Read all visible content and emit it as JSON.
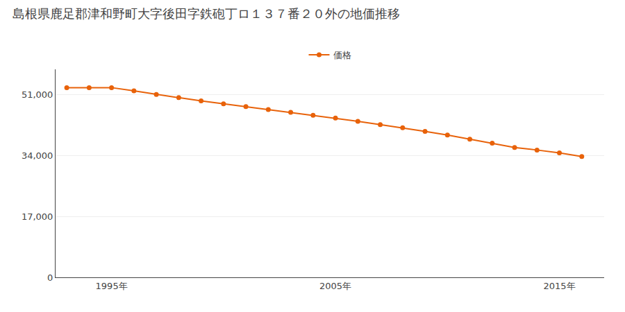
{
  "chart_data": {
    "type": "line",
    "title": "島根県鹿足郡津和野町大字後田字鉄砲丁ロ１３７番２０外の地価推移",
    "x": [
      1993,
      1994,
      1995,
      1996,
      1997,
      1998,
      1999,
      2000,
      2001,
      2002,
      2003,
      2004,
      2005,
      2006,
      2007,
      2008,
      2009,
      2010,
      2011,
      2012,
      2013,
      2014,
      2015,
      2016
    ],
    "series": [
      {
        "name": "価格",
        "color": "#e8620a",
        "marker": "circle",
        "line_style": "solid",
        "values": [
          52900,
          52900,
          52900,
          52000,
          51000,
          50100,
          49200,
          48400,
          47600,
          46800,
          46000,
          45200,
          44400,
          43500,
          42600,
          41700,
          40700,
          39700,
          38500,
          37400,
          36200,
          35500,
          34700,
          33700
        ]
      }
    ],
    "xlim": [
      1992.5,
      2017
    ],
    "xticks": [
      {
        "value": 1995,
        "label": "1995年"
      },
      {
        "value": 2005,
        "label": "2005年"
      },
      {
        "value": 2015,
        "label": "2015年"
      }
    ],
    "ylim": [
      0,
      58000
    ],
    "yticks": [
      0,
      {
        "value": 17000,
        "label": "17,000"
      },
      {
        "value": 34000,
        "label": "34,000"
      },
      {
        "value": 51000,
        "label": "51,000"
      }
    ],
    "grid": true,
    "legend": "top"
  }
}
